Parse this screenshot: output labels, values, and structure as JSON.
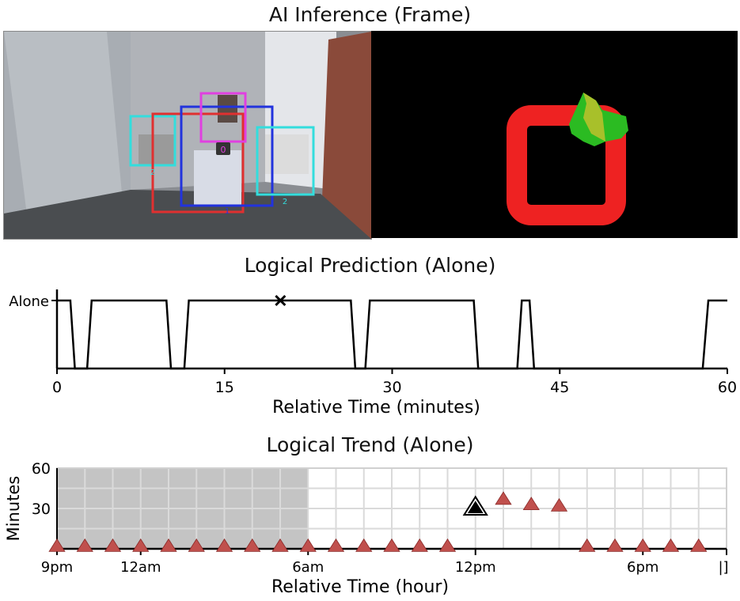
{
  "panels": {
    "frame_title": "AI Inference (Frame)",
    "prediction_title": "Logical Prediction (Alone)",
    "trend_title": "Logical Trend (Alone)"
  },
  "frame": {
    "detections": [
      {
        "label": "0",
        "color": "#e040e0"
      },
      {
        "label": "1",
        "color": "#2233dd"
      },
      {
        "label": "2",
        "color": "#33dddd"
      },
      {
        "label": "2",
        "color": "#33dddd"
      },
      {
        "label": "",
        "color": "#e03030"
      }
    ]
  },
  "chart_data": [
    {
      "type": "line",
      "title": "Logical Prediction (Alone)",
      "xlabel": "Relative Time (minutes)",
      "ylabel": "",
      "xlim": [
        0,
        60
      ],
      "xticks": [
        0,
        15,
        30,
        45,
        60
      ],
      "y_category_label": "Alone",
      "series": [
        {
          "x": [
            0,
            1.2,
            1.6,
            2.7,
            3.1,
            9.8,
            10.2,
            11.4,
            11.8,
            26.3,
            26.7,
            27.6,
            28.0,
            37.3,
            37.7,
            41.2,
            41.6,
            42.3,
            42.7,
            57.8,
            58.3,
            60
          ],
          "y": [
            1,
            1,
            0,
            0,
            1,
            1,
            0,
            0,
            1,
            1,
            0,
            0,
            1,
            1,
            0,
            0,
            1,
            1,
            0,
            0,
            1,
            1
          ]
        }
      ],
      "marker": {
        "x": 20,
        "y": 1,
        "symbol": "x"
      },
      "line_color": "#000000"
    },
    {
      "type": "scatter",
      "title": "Logical Trend (Alone)",
      "xlabel": "Relative Time (hour)",
      "ylabel": "Minutes",
      "x_tick_labels": [
        "9pm",
        "12am",
        "6am",
        "12pm",
        "6pm",
        "|]"
      ],
      "x_tick_hours": [
        0,
        3,
        9,
        15,
        21,
        24
      ],
      "yticks": [
        30,
        60
      ],
      "ylim": [
        0,
        60
      ],
      "grid": true,
      "shaded_range_hours": [
        0,
        9
      ],
      "marker_color": "#c0504d",
      "points": [
        {
          "x": 0,
          "y": 2
        },
        {
          "x": 1,
          "y": 2
        },
        {
          "x": 2,
          "y": 2
        },
        {
          "x": 3,
          "y": 2
        },
        {
          "x": 4,
          "y": 2
        },
        {
          "x": 5,
          "y": 2
        },
        {
          "x": 6,
          "y": 2
        },
        {
          "x": 7,
          "y": 2
        },
        {
          "x": 8,
          "y": 2
        },
        {
          "x": 9,
          "y": 2
        },
        {
          "x": 10,
          "y": 2
        },
        {
          "x": 11,
          "y": 2
        },
        {
          "x": 12,
          "y": 2
        },
        {
          "x": 13,
          "y": 2
        },
        {
          "x": 14,
          "y": 2
        },
        {
          "x": 16,
          "y": 37
        },
        {
          "x": 17,
          "y": 33
        },
        {
          "x": 18,
          "y": 32
        },
        {
          "x": 19,
          "y": 2
        },
        {
          "x": 20,
          "y": 2
        },
        {
          "x": 21,
          "y": 2
        },
        {
          "x": 22,
          "y": 2
        },
        {
          "x": 23,
          "y": 2
        }
      ],
      "highlight_point": {
        "x": 15,
        "y": 31
      }
    }
  ]
}
